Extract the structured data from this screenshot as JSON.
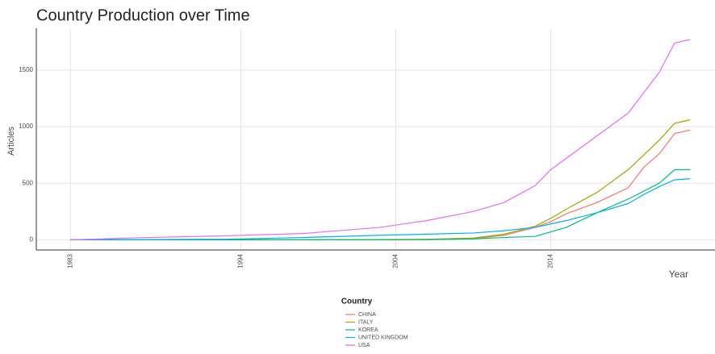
{
  "chart_data": {
    "type": "line",
    "title": "Country Production over Time",
    "x_label": "Year",
    "y_label": "Articles",
    "legend_title": "Country",
    "x": [
      1983,
      1988,
      1993,
      1998,
      2003,
      2006,
      2009,
      2011,
      2013,
      2014,
      2015,
      2017,
      2019,
      2020,
      2021,
      2022,
      2023
    ],
    "series": [
      {
        "name": "CHINA",
        "color": "#F8766D",
        "values": [
          0,
          0,
          0,
          0,
          0,
          2,
          10,
          40,
          110,
          160,
          230,
          330,
          460,
          640,
          760,
          940,
          970
        ]
      },
      {
        "name": "ITALY",
        "color": "#A3A500",
        "values": [
          0,
          0,
          0,
          0,
          2,
          5,
          15,
          50,
          120,
          190,
          270,
          420,
          620,
          750,
          880,
          1030,
          1060
        ]
      },
      {
        "name": "KOREA",
        "color": "#00BF7D",
        "values": [
          0,
          0,
          0,
          0,
          0,
          2,
          8,
          20,
          30,
          70,
          110,
          240,
          360,
          430,
          500,
          620,
          620
        ]
      },
      {
        "name": "UNITED KINGDOM",
        "color": "#00B0F6",
        "values": [
          0,
          2,
          5,
          20,
          40,
          50,
          60,
          80,
          110,
          140,
          170,
          240,
          320,
          400,
          470,
          530,
          540
        ]
      },
      {
        "name": "USA",
        "color": "#E76BF3",
        "values": [
          0,
          20,
          35,
          55,
          110,
          170,
          250,
          330,
          480,
          620,
          720,
          920,
          1120,
          1300,
          1480,
          1740,
          1770
        ]
      }
    ],
    "xlim": [
      1980.8,
      2024.6
    ],
    "ylim": [
      -90,
      1870
    ],
    "xticks": [
      1983,
      1994,
      2004,
      2014
    ],
    "yticks": [
      0,
      500,
      1000,
      1500
    ],
    "grid": true,
    "legend_position": "bottom"
  }
}
